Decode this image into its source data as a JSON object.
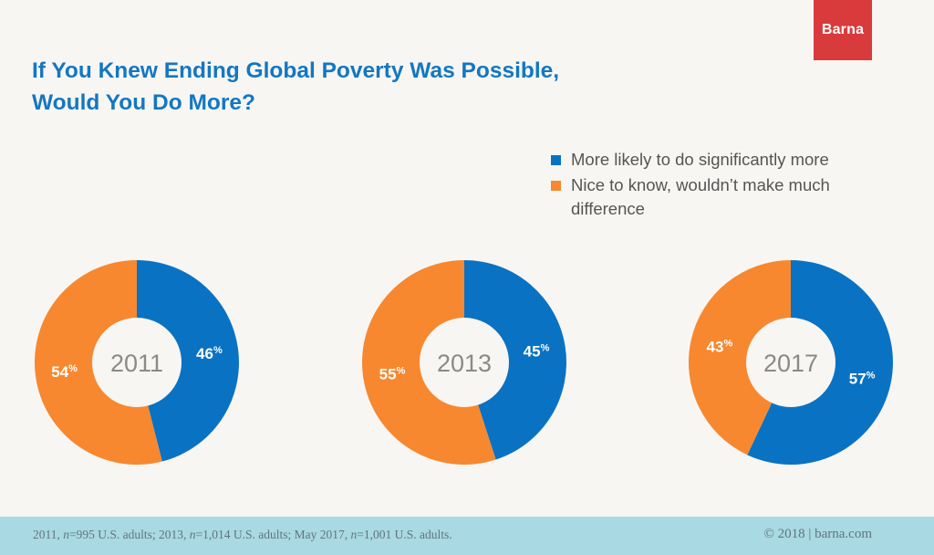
{
  "brand": {
    "logo_text": "Barna",
    "logo_color": "#d93a3c"
  },
  "title": {
    "line1": "If You Knew Ending Global Poverty Was Possible,",
    "line2": "Would You Do More?"
  },
  "legend": [
    {
      "label": "More likely to do significantly more",
      "color": "#0a72c3"
    },
    {
      "label": "Nice to know, wouldn’t make much difference",
      "color": "#f7882f"
    }
  ],
  "chart_data": [
    {
      "type": "pie",
      "center_label": "2011",
      "slices": [
        {
          "name": "More likely to do significantly more",
          "value": 46,
          "label": "46",
          "unit": "%"
        },
        {
          "name": "Nice to know, wouldn’t make much difference",
          "value": 54,
          "label": "54",
          "unit": "%"
        }
      ]
    },
    {
      "type": "pie",
      "center_label": "2013",
      "slices": [
        {
          "name": "More likely to do significantly more",
          "value": 45,
          "label": "45",
          "unit": "%"
        },
        {
          "name": "Nice to know, wouldn’t make much difference",
          "value": 55,
          "label": "55",
          "unit": "%"
        }
      ]
    },
    {
      "type": "pie",
      "center_label": "2017",
      "slices": [
        {
          "name": "More likely to do significantly more",
          "value": 57,
          "label": "57",
          "unit": "%"
        },
        {
          "name": "Nice to know, wouldn’t make much difference",
          "value": 43,
          "label": "43",
          "unit": "%"
        }
      ]
    }
  ],
  "footer": {
    "parts": [
      {
        "text": "2011, ",
        "italic": false
      },
      {
        "text": "n",
        "italic": true
      },
      {
        "text": "=995 U.S. adults; 2013, ",
        "italic": false
      },
      {
        "text": "n",
        "italic": true
      },
      {
        "text": "=1,014 U.S. adults; May 2017, ",
        "italic": false
      },
      {
        "text": "n",
        "italic": true
      },
      {
        "text": "=1,001 U.S. adults.",
        "italic": false
      }
    ],
    "credit": "© 2018 | barna.com"
  }
}
